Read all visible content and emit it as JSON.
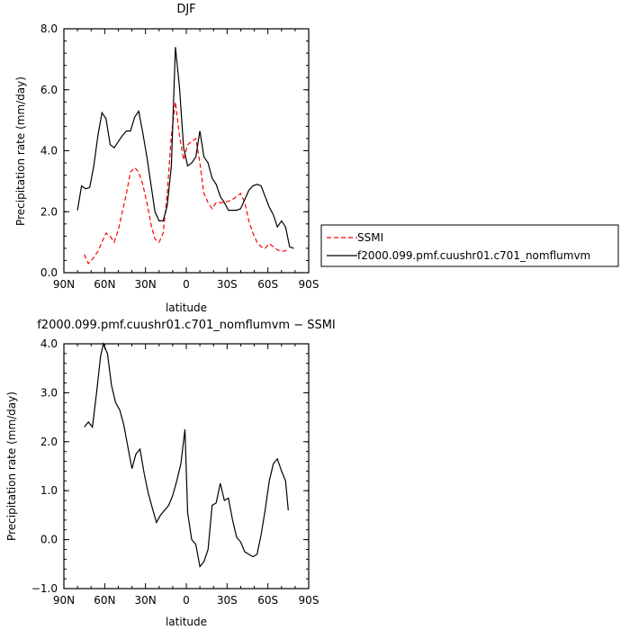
{
  "chart_data": [
    {
      "type": "line",
      "title": "DJF",
      "xlabel": "latitude",
      "ylabel": "Precipitation rate (mm/day)",
      "xlim": [
        90,
        -90
      ],
      "ylim": [
        0,
        8
      ],
      "x_ticks": [
        {
          "value": 90,
          "label": "90N"
        },
        {
          "value": 60,
          "label": "60N"
        },
        {
          "value": 30,
          "label": "30N"
        },
        {
          "value": 0,
          "label": "0"
        },
        {
          "value": -30,
          "label": "30S"
        },
        {
          "value": -60,
          "label": "60S"
        },
        {
          "value": -90,
          "label": "90S"
        }
      ],
      "y_ticks": [
        {
          "value": 0,
          "label": "0.0"
        },
        {
          "value": 2,
          "label": "2.0"
        },
        {
          "value": 4,
          "label": "4.0"
        },
        {
          "value": 6,
          "label": "6.0"
        },
        {
          "value": 8,
          "label": "8.0"
        }
      ],
      "legend_position": "right",
      "series": [
        {
          "name": "SSMI",
          "color": "#ff0000",
          "dash": "dashed",
          "x": [
            75,
            72,
            68,
            65,
            62,
            59,
            56,
            53,
            50,
            47,
            44,
            41,
            38,
            35,
            32,
            29,
            26,
            23,
            20,
            17,
            14,
            11,
            8,
            5,
            2,
            -1,
            -4,
            -7,
            -10,
            -13,
            -16,
            -19,
            -22,
            -25,
            -28,
            -31,
            -34,
            -37,
            -40,
            -43,
            -46,
            -49,
            -52,
            -55,
            -58,
            -61,
            -64,
            -67,
            -70,
            -73,
            -75
          ],
          "y": [
            0.6,
            0.3,
            0.5,
            0.7,
            1.0,
            1.3,
            1.2,
            1.0,
            1.4,
            2.0,
            2.6,
            3.3,
            3.45,
            3.3,
            2.9,
            2.3,
            1.6,
            1.1,
            1.0,
            1.3,
            2.6,
            4.5,
            5.6,
            4.5,
            3.7,
            4.2,
            4.3,
            4.4,
            3.6,
            2.6,
            2.3,
            2.1,
            2.3,
            2.3,
            2.3,
            2.35,
            2.4,
            2.5,
            2.6,
            2.3,
            1.7,
            1.3,
            1.0,
            0.85,
            0.8,
            0.95,
            0.85,
            0.75,
            0.7,
            0.72,
            0.75
          ]
        },
        {
          "name": "f2000.099.pmf.cuushr01.c701_nomflumvm",
          "color": "#000000",
          "dash": "solid",
          "x": [
            80,
            77,
            74,
            71,
            68,
            65,
            62,
            59,
            56,
            53,
            50,
            47,
            44,
            41,
            38,
            35,
            32,
            29,
            26,
            23,
            20,
            17,
            14,
            11,
            8,
            5,
            2,
            -1,
            -4,
            -7,
            -10,
            -13,
            -16,
            -19,
            -22,
            -25,
            -28,
            -31,
            -34,
            -37,
            -40,
            -43,
            -46,
            -49,
            -52,
            -55,
            -58,
            -61,
            -64,
            -67,
            -70,
            -73,
            -76,
            -79
          ],
          "y": [
            2.05,
            2.85,
            2.75,
            2.8,
            3.5,
            4.5,
            5.25,
            5.05,
            4.2,
            4.1,
            4.3,
            4.5,
            4.65,
            4.65,
            5.1,
            5.3,
            4.6,
            3.8,
            2.9,
            2.0,
            1.7,
            1.7,
            2.2,
            3.5,
            7.4,
            6.1,
            4.1,
            3.5,
            3.6,
            3.8,
            4.65,
            3.8,
            3.6,
            3.1,
            2.9,
            2.5,
            2.3,
            2.05,
            2.05,
            2.05,
            2.1,
            2.4,
            2.7,
            2.85,
            2.9,
            2.85,
            2.5,
            2.15,
            1.9,
            1.5,
            1.7,
            1.5,
            0.85,
            0.8
          ]
        }
      ]
    },
    {
      "type": "line",
      "title": "f2000.099.pmf.cuushr01.c701_nomflumvm − SSMI",
      "xlabel": "latitude",
      "ylabel": "Precipitation rate (mm/day)",
      "xlim": [
        90,
        -90
      ],
      "ylim": [
        -1,
        4
      ],
      "x_ticks": [
        {
          "value": 90,
          "label": "90N"
        },
        {
          "value": 60,
          "label": "60N"
        },
        {
          "value": 30,
          "label": "30N"
        },
        {
          "value": 0,
          "label": "0"
        },
        {
          "value": -30,
          "label": "30S"
        },
        {
          "value": -60,
          "label": "60S"
        },
        {
          "value": -90,
          "label": "90S"
        }
      ],
      "y_ticks": [
        {
          "value": -1,
          "label": "−1.0"
        },
        {
          "value": 0,
          "label": "0.0"
        },
        {
          "value": 1,
          "label": "1.0"
        },
        {
          "value": 2,
          "label": "2.0"
        },
        {
          "value": 3,
          "label": "3.0"
        },
        {
          "value": 4,
          "label": "4.0"
        }
      ],
      "series": [
        {
          "color": "#000000",
          "dash": "solid",
          "x": [
            75,
            72,
            69,
            66,
            63,
            61,
            58,
            55,
            52,
            49,
            46,
            43,
            40,
            37,
            34,
            31,
            28,
            25,
            22,
            19,
            16,
            13,
            10,
            7,
            4,
            1,
            -1,
            -4,
            -7,
            -10,
            -13,
            -16,
            -19,
            -22,
            -25,
            -28,
            -31,
            -34,
            -37,
            -40,
            -43,
            -46,
            -49,
            -52,
            -55,
            -58,
            -61,
            -64,
            -67,
            -70,
            -73,
            -75
          ],
          "y": [
            2.3,
            2.4,
            2.3,
            3.0,
            3.75,
            4.0,
            3.8,
            3.15,
            2.8,
            2.65,
            2.35,
            1.9,
            1.45,
            1.75,
            1.85,
            1.35,
            0.95,
            0.65,
            0.35,
            0.5,
            0.6,
            0.7,
            0.9,
            1.2,
            1.55,
            2.25,
            0.55,
            0.0,
            -0.1,
            -0.55,
            -0.45,
            -0.2,
            0.7,
            0.75,
            1.15,
            0.8,
            0.85,
            0.4,
            0.05,
            -0.05,
            -0.25,
            -0.3,
            -0.35,
            -0.3,
            0.1,
            0.6,
            1.2,
            1.55,
            1.65,
            1.4,
            1.2,
            0.6
          ]
        }
      ]
    }
  ]
}
